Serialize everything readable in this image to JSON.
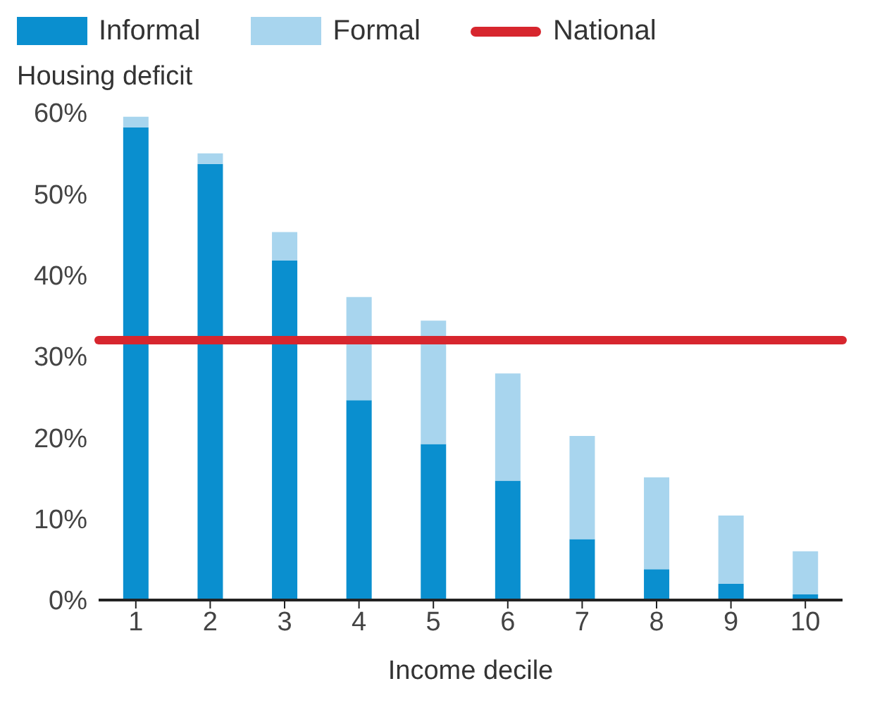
{
  "chart_data": {
    "type": "bar",
    "stacked": true,
    "ylabel": "Housing deficit",
    "xlabel": "Income decile",
    "categories": [
      "1",
      "2",
      "3",
      "4",
      "5",
      "6",
      "7",
      "8",
      "9",
      "10"
    ],
    "series": [
      {
        "name": "Informal",
        "color": "#0a8fcf",
        "values": [
          58.2,
          53.7,
          41.8,
          24.6,
          19.2,
          14.7,
          7.5,
          3.8,
          2.0,
          0.7
        ]
      },
      {
        "name": "Formal",
        "color": "#a8d5ee",
        "values": [
          1.3,
          1.3,
          3.5,
          12.7,
          15.2,
          13.2,
          12.7,
          11.3,
          8.4,
          5.3
        ]
      }
    ],
    "ref_lines": [
      {
        "axis": "y",
        "value": 32,
        "label": "National",
        "color": "#d7262e"
      }
    ],
    "ylim": [
      0,
      60
    ],
    "yticks": [
      {
        "value": 0,
        "label": "0%"
      },
      {
        "value": 10,
        "label": "10%"
      },
      {
        "value": 20,
        "label": "20%"
      },
      {
        "value": 30,
        "label": "30%"
      },
      {
        "value": 40,
        "label": "40%"
      },
      {
        "value": 50,
        "label": "50%"
      },
      {
        "value": 60,
        "label": "60%"
      }
    ],
    "grid": false,
    "legend": "top left"
  }
}
